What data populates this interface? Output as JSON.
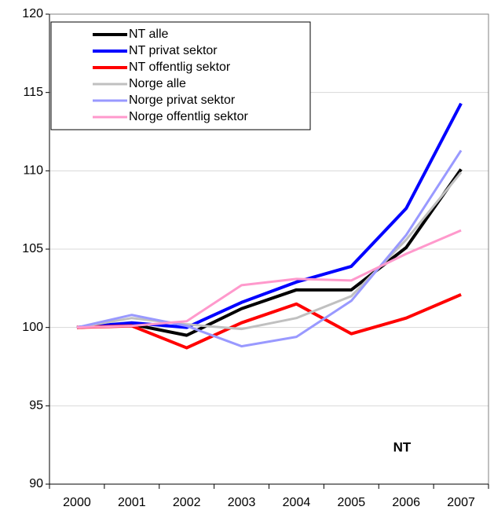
{
  "chart_data": {
    "type": "line",
    "categories": [
      "2000",
      "2001",
      "2002",
      "2003",
      "2004",
      "2005",
      "2006",
      "2007"
    ],
    "series": [
      {
        "name": "NT alle",
        "color": "#000000",
        "values": [
          100,
          100.2,
          99.5,
          101.2,
          102.4,
          102.4,
          105.1,
          110.1
        ]
      },
      {
        "name": "NT privat sektor",
        "color": "#0000ff",
        "values": [
          100,
          100.3,
          100.0,
          101.6,
          102.9,
          103.9,
          107.6,
          114.3
        ]
      },
      {
        "name": "NT offentlig sektor",
        "color": "#ff0000",
        "values": [
          100,
          100.1,
          98.7,
          100.3,
          101.5,
          99.6,
          100.6,
          102.1
        ]
      },
      {
        "name": "Norge alle",
        "color": "#c0c0c0",
        "values": [
          100,
          100.6,
          100.2,
          99.9,
          100.6,
          102.0,
          105.6,
          109.9
        ]
      },
      {
        "name": "Norge privat sektor",
        "color": "#9999ff",
        "values": [
          100,
          100.8,
          100.1,
          98.8,
          99.4,
          101.7,
          105.9,
          111.3
        ]
      },
      {
        "name": "Norge offentlig sektor",
        "color": "#ff99cc",
        "values": [
          100,
          100.1,
          100.4,
          102.7,
          103.1,
          103.0,
          104.7,
          106.2
        ]
      }
    ],
    "ylim": [
      90,
      120
    ],
    "yticks": [
      90,
      95,
      100,
      105,
      110,
      115,
      120
    ],
    "grid": true,
    "annotation": "NT"
  }
}
